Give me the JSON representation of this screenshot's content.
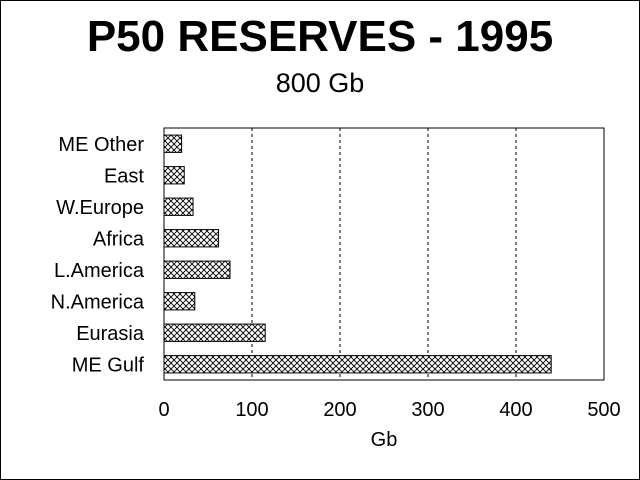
{
  "title": "P50 RESERVES - 1995",
  "subtitle": "800 Gb",
  "chart_data": {
    "type": "bar",
    "orientation": "horizontal",
    "categories": [
      "ME Other",
      "East",
      "W.Europe",
      "Africa",
      "L.America",
      "N.America",
      "Eurasia",
      "ME Gulf"
    ],
    "values": [
      20,
      23,
      33,
      62,
      75,
      35,
      115,
      440
    ],
    "xlabel": "Gb",
    "ylabel": "",
    "xlim": [
      0,
      500
    ],
    "xticks": [
      "0",
      "100",
      "200",
      "300",
      "400",
      "500"
    ],
    "grid": "vertical dashed",
    "bar_fill": "crosshatch",
    "bar_color": "#000000",
    "background": "#ffffff"
  }
}
